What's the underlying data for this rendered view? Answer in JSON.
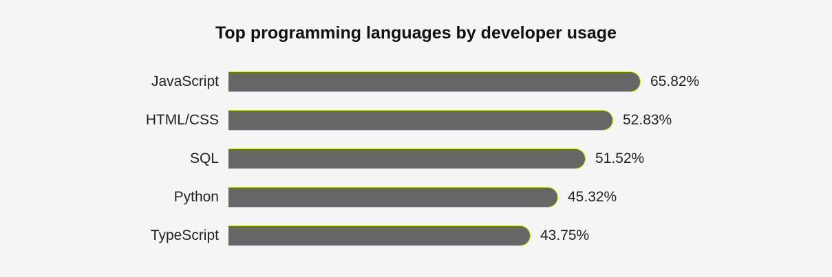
{
  "chart_data": {
    "type": "bar",
    "orientation": "horizontal",
    "title": "Top programming languages by developer usage",
    "categories": [
      "JavaScript",
      "HTML/CSS",
      "SQL",
      "Python",
      "TypeScript"
    ],
    "values": [
      65.82,
      52.83,
      51.52,
      45.32,
      43.75
    ],
    "value_labels": [
      "65.82%",
      "52.83%",
      "51.52%",
      "45.32%",
      "43.75%"
    ],
    "xlabel": "",
    "ylabel": "",
    "grid": false,
    "colors": {
      "bar": "#666666",
      "bar_outline": "#c8f000",
      "background": "#f5f5f5"
    }
  }
}
